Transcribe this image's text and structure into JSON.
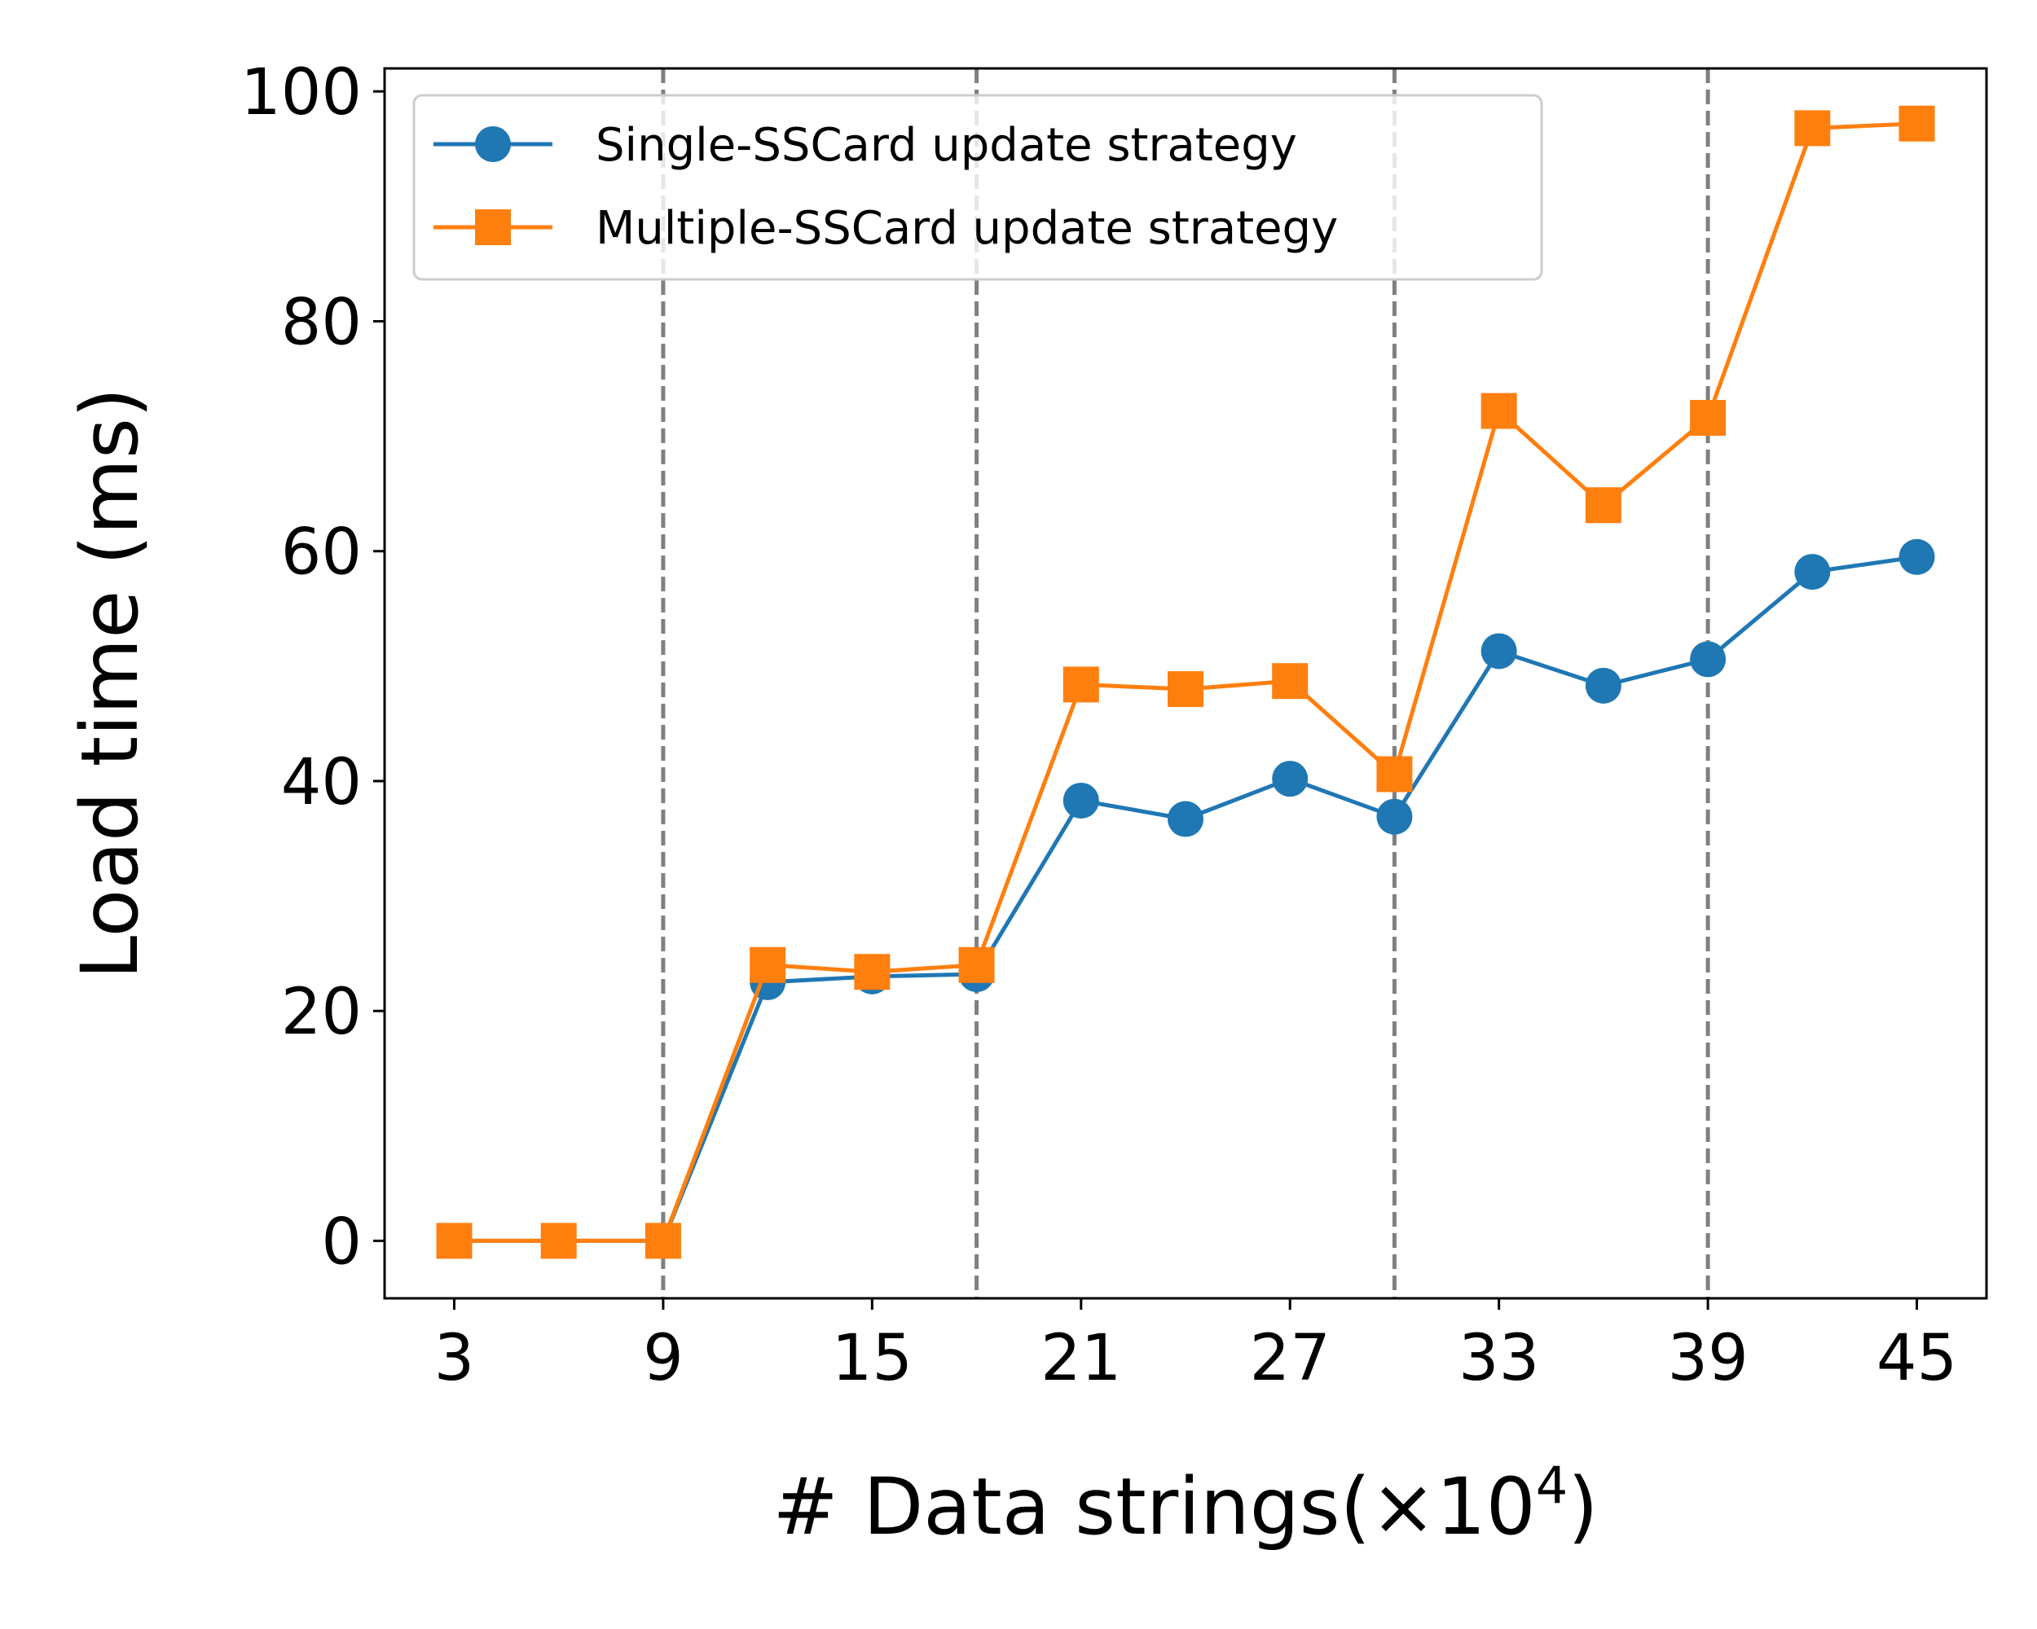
{
  "chart_data": {
    "type": "line",
    "xlabel_main": "# Data strings(×10",
    "xlabel_sup": "4",
    "xlabel_close": ")",
    "ylabel": "Load time (ms)",
    "xlim": [
      1,
      47
    ],
    "ylim": [
      -5,
      102
    ],
    "x_ticks": [
      3,
      9,
      15,
      21,
      27,
      33,
      39,
      45
    ],
    "y_ticks": [
      0,
      20,
      40,
      60,
      80,
      100
    ],
    "vlines": [
      9,
      18,
      30,
      39
    ],
    "vline_color": "#808080",
    "grid": false,
    "legend_position": "upper-left",
    "x": [
      3,
      6,
      9,
      12,
      15,
      18,
      21,
      24,
      27,
      30,
      33,
      36,
      39,
      42,
      45
    ],
    "series": [
      {
        "name": "Single-SSCard update strategy",
        "color": "#1f77b4",
        "marker": "circle",
        "values": [
          0,
          0,
          0,
          22.5,
          23.0,
          23.2,
          38.3,
          36.7,
          40.2,
          36.9,
          51.3,
          48.3,
          50.6,
          58.2,
          59.5
        ]
      },
      {
        "name": "Multiple-SSCard update strategy",
        "color": "#ff7f0e",
        "marker": "square",
        "values": [
          0,
          0,
          0,
          24.0,
          23.4,
          24.0,
          48.4,
          48.0,
          48.7,
          40.6,
          72.2,
          64.0,
          71.6,
          96.8,
          97.2
        ]
      }
    ]
  }
}
